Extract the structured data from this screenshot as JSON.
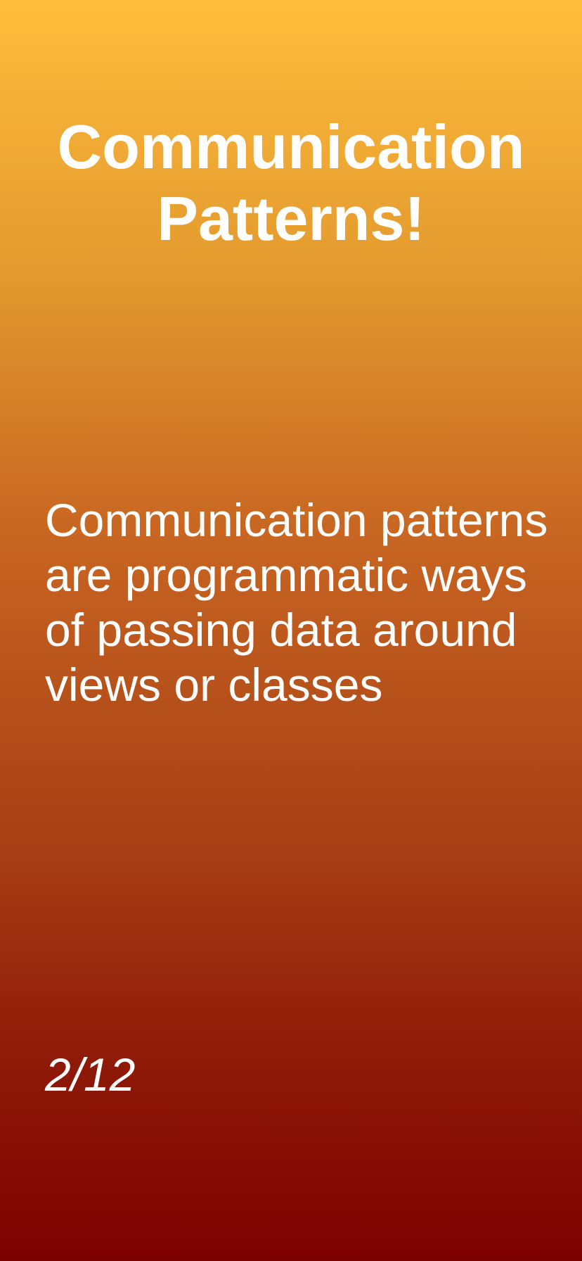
{
  "slide": {
    "title": "Communication Patterns!",
    "body": "Communication patterns are programmatic ways of passing data around views or classes",
    "counter": "2/12"
  },
  "colors": {
    "gradient_top": "#ffbd3c",
    "gradient_bottom": "#7d0000",
    "text": "#ffffff"
  }
}
